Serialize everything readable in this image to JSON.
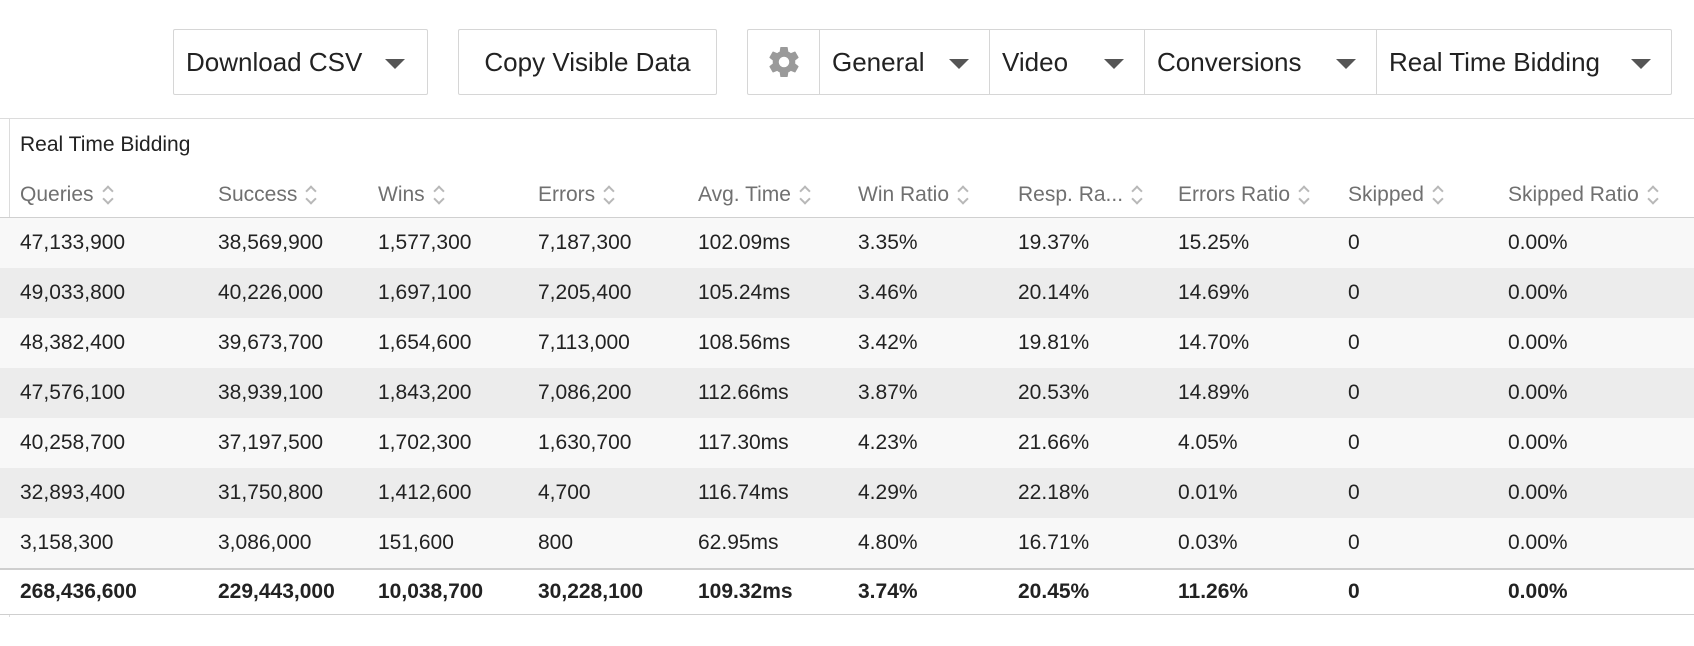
{
  "toolbar": {
    "download_label": "Download CSV",
    "copy_label": "Copy Visible Data",
    "segments": {
      "settings_icon": "gear-icon",
      "general": "General",
      "video": "Video",
      "conversions": "Conversions",
      "rtb": "Real Time Bidding"
    }
  },
  "table": {
    "group_title": "Real Time Bidding",
    "columns": [
      "Queries",
      "Success",
      "Wins",
      "Errors",
      "Avg. Time",
      "Win Ratio",
      "Resp. Ra...",
      "Errors Ratio",
      "Skipped",
      "Skipped Ratio"
    ],
    "rows": [
      [
        "47,133,900",
        "38,569,900",
        "1,577,300",
        "7,187,300",
        "102.09ms",
        "3.35%",
        "19.37%",
        "15.25%",
        "0",
        "0.00%"
      ],
      [
        "49,033,800",
        "40,226,000",
        "1,697,100",
        "7,205,400",
        "105.24ms",
        "3.46%",
        "20.14%",
        "14.69%",
        "0",
        "0.00%"
      ],
      [
        "48,382,400",
        "39,673,700",
        "1,654,600",
        "7,113,000",
        "108.56ms",
        "3.42%",
        "19.81%",
        "14.70%",
        "0",
        "0.00%"
      ],
      [
        "47,576,100",
        "38,939,100",
        "1,843,200",
        "7,086,200",
        "112.66ms",
        "3.87%",
        "20.53%",
        "14.89%",
        "0",
        "0.00%"
      ],
      [
        "40,258,700",
        "37,197,500",
        "1,702,300",
        "1,630,700",
        "117.30ms",
        "4.23%",
        "21.66%",
        "4.05%",
        "0",
        "0.00%"
      ],
      [
        "32,893,400",
        "31,750,800",
        "1,412,600",
        "4,700",
        "116.74ms",
        "4.29%",
        "22.18%",
        "0.01%",
        "0",
        "0.00%"
      ],
      [
        "3,158,300",
        "3,086,000",
        "151,600",
        "800",
        "62.95ms",
        "4.80%",
        "16.71%",
        "0.03%",
        "0",
        "0.00%"
      ]
    ],
    "totals": [
      "268,436,600",
      "229,443,000",
      "10,038,700",
      "30,228,100",
      "109.32ms",
      "3.74%",
      "20.45%",
      "11.26%",
      "0",
      "0.00%"
    ]
  },
  "colors": {
    "border": "#d6d6d6",
    "row_odd": "#f8f8f8",
    "row_even": "#ececec",
    "header_text": "#707070"
  }
}
